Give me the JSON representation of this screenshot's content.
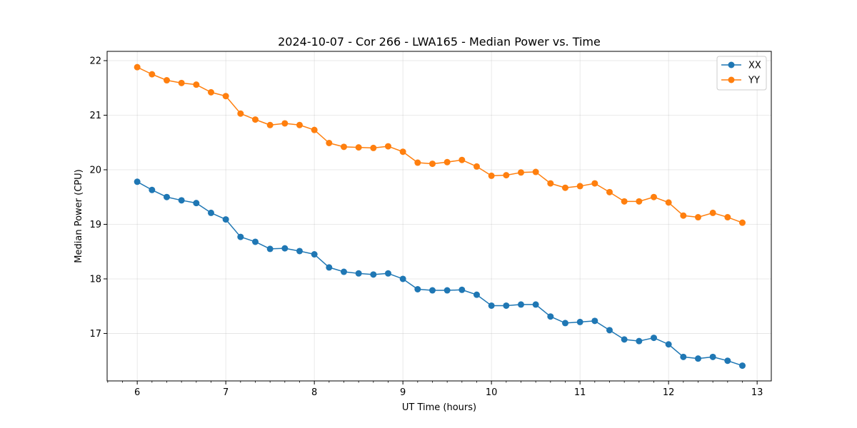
{
  "chart_data": {
    "type": "line",
    "title": "2024-10-07 - Cor 266 - LWA165 - Median Power vs. Time",
    "xlabel": "UT Time (hours)",
    "ylabel": "Median Power (CPU)",
    "xlim": [
      5.66,
      13.16
    ],
    "ylim": [
      16.13,
      22.17
    ],
    "xticks": [
      6,
      7,
      8,
      9,
      10,
      11,
      12,
      13
    ],
    "xtick_labels": [
      "6",
      "7",
      "8",
      "9",
      "10",
      "11",
      "12",
      "13"
    ],
    "yticks": [
      17,
      18,
      19,
      20,
      21,
      22
    ],
    "ytick_labels": [
      "17",
      "18",
      "19",
      "20",
      "21",
      "22"
    ],
    "grid": true,
    "legend_position": "top-right",
    "x": [
      6.0,
      6.1667,
      6.3333,
      6.5,
      6.6667,
      6.8333,
      7.0,
      7.1667,
      7.3333,
      7.5,
      7.6667,
      7.8333,
      8.0,
      8.1667,
      8.3333,
      8.5,
      8.6667,
      8.8333,
      9.0,
      9.1667,
      9.3333,
      9.5,
      9.6667,
      9.8333,
      10.0,
      10.1667,
      10.3333,
      10.5,
      10.6667,
      10.8333,
      11.0,
      11.1667,
      11.3333,
      11.5,
      11.6667,
      11.8333,
      12.0,
      12.1667,
      12.3333,
      12.5,
      12.6667,
      12.8333
    ],
    "series": [
      {
        "name": "XX",
        "color": "#1f77b4",
        "values": [
          19.78,
          19.63,
          19.5,
          19.44,
          19.39,
          19.21,
          19.09,
          18.77,
          18.68,
          18.55,
          18.56,
          18.51,
          18.45,
          18.21,
          18.13,
          18.1,
          18.08,
          18.1,
          18.0,
          17.81,
          17.79,
          17.79,
          17.8,
          17.71,
          17.51,
          17.51,
          17.53,
          17.53,
          17.31,
          17.19,
          17.21,
          17.23,
          17.06,
          16.89,
          16.86,
          16.92,
          16.8,
          16.57,
          16.54,
          16.57,
          16.5,
          16.41
        ]
      },
      {
        "name": "YY",
        "color": "#ff7f0e",
        "values": [
          21.88,
          21.75,
          21.64,
          21.59,
          21.56,
          21.42,
          21.35,
          21.03,
          20.92,
          20.82,
          20.85,
          20.82,
          20.73,
          20.49,
          20.42,
          20.41,
          20.4,
          20.43,
          20.33,
          20.13,
          20.11,
          20.14,
          20.18,
          20.06,
          19.89,
          19.9,
          19.95,
          19.96,
          19.75,
          19.67,
          19.7,
          19.75,
          19.59,
          19.42,
          19.42,
          19.5,
          19.4,
          19.16,
          19.13,
          19.21,
          19.13,
          19.03
        ]
      }
    ]
  }
}
